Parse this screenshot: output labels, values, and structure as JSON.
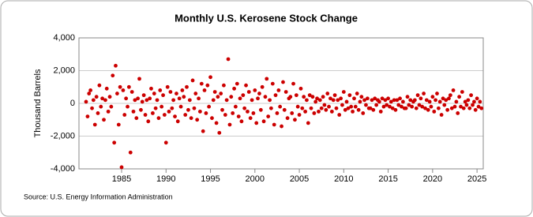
{
  "chart_data": {
    "type": "scatter",
    "title": "Monthly U.S. Kerosene Stock Change",
    "y_label": "Thousand Barrels",
    "source": "Source: U.S. Energy Information Administration",
    "color": "#cc0000",
    "grid": true,
    "xlim": [
      1980.2,
      2025.7
    ],
    "ylim": [
      -4000,
      4000
    ],
    "xticks": [
      1985,
      1990,
      1995,
      2000,
      2005,
      2010,
      2015,
      2020,
      2025
    ],
    "yticks": [
      {
        "value": -4000,
        "label": "-4,000"
      },
      {
        "value": -2000,
        "label": "-2,000"
      },
      0,
      {
        "value": 2000,
        "label": "2,000"
      },
      {
        "value": 4000,
        "label": "4,000"
      }
    ],
    "x": [
      1981,
      1981.17,
      1981.33,
      1981.5,
      1981.67,
      1981.83,
      1982,
      1982.17,
      1982.33,
      1982.5,
      1982.67,
      1982.83,
      1983,
      1983.17,
      1983.33,
      1983.5,
      1983.67,
      1983.83,
      1984,
      1984.17,
      1984.33,
      1984.5,
      1984.67,
      1984.83,
      1985,
      1985.17,
      1985.33,
      1985.5,
      1985.67,
      1985.83,
      1986,
      1986.17,
      1986.33,
      1986.5,
      1986.67,
      1986.83,
      1987,
      1987.17,
      1987.33,
      1987.5,
      1987.67,
      1987.83,
      1988,
      1988.17,
      1988.33,
      1988.5,
      1988.67,
      1988.83,
      1989,
      1989.17,
      1989.33,
      1989.5,
      1989.67,
      1989.83,
      1990,
      1990.17,
      1990.33,
      1990.5,
      1990.67,
      1990.83,
      1991,
      1991.17,
      1991.33,
      1991.5,
      1991.67,
      1991.83,
      1992,
      1992.17,
      1992.33,
      1992.5,
      1992.67,
      1992.83,
      1993,
      1993.17,
      1993.33,
      1993.5,
      1993.67,
      1993.83,
      1994,
      1994.17,
      1994.33,
      1994.5,
      1994.67,
      1994.83,
      1995,
      1995.17,
      1995.33,
      1995.5,
      1995.67,
      1995.83,
      1996,
      1996.17,
      1996.33,
      1996.5,
      1996.67,
      1996.83,
      1997,
      1997.17,
      1997.33,
      1997.5,
      1997.67,
      1997.83,
      1998,
      1998.17,
      1998.33,
      1998.5,
      1998.67,
      1998.83,
      1999,
      1999.17,
      1999.33,
      1999.5,
      1999.67,
      1999.83,
      2000,
      2000.17,
      2000.33,
      2000.5,
      2000.67,
      2000.83,
      2001,
      2001.17,
      2001.33,
      2001.5,
      2001.67,
      2001.83,
      2002,
      2002.17,
      2002.33,
      2002.5,
      2002.67,
      2002.83,
      2003,
      2003.17,
      2003.33,
      2003.5,
      2003.67,
      2003.83,
      2004,
      2004.17,
      2004.33,
      2004.5,
      2004.67,
      2004.83,
      2005,
      2005.17,
      2005.33,
      2005.5,
      2005.67,
      2005.83,
      2006,
      2006.17,
      2006.33,
      2006.5,
      2006.67,
      2006.83,
      2007,
      2007.17,
      2007.33,
      2007.5,
      2007.67,
      2007.83,
      2008,
      2008.17,
      2008.33,
      2008.5,
      2008.67,
      2008.83,
      2009,
      2009.17,
      2009.33,
      2009.5,
      2009.67,
      2009.83,
      2010,
      2010.17,
      2010.33,
      2010.5,
      2010.67,
      2010.83,
      2011,
      2011.17,
      2011.33,
      2011.5,
      2011.67,
      2011.83,
      2012,
      2012.17,
      2012.33,
      2012.5,
      2012.67,
      2012.83,
      2013,
      2013.17,
      2013.33,
      2013.5,
      2013.67,
      2013.83,
      2014,
      2014.17,
      2014.33,
      2014.5,
      2014.67,
      2014.83,
      2015,
      2015.17,
      2015.33,
      2015.5,
      2015.67,
      2015.83,
      2016,
      2016.17,
      2016.33,
      2016.5,
      2016.67,
      2016.83,
      2017,
      2017.17,
      2017.33,
      2017.5,
      2017.67,
      2017.83,
      2018,
      2018.17,
      2018.33,
      2018.5,
      2018.67,
      2018.83,
      2019,
      2019.17,
      2019.33,
      2019.5,
      2019.67,
      2019.83,
      2020,
      2020.17,
      2020.33,
      2020.5,
      2020.67,
      2020.83,
      2021,
      2021.17,
      2021.33,
      2021.5,
      2021.67,
      2021.83,
      2022,
      2022.17,
      2022.33,
      2022.5,
      2022.67,
      2022.83,
      2023,
      2023.17,
      2023.33,
      2023.5,
      2023.67,
      2023.83,
      2024,
      2024.17,
      2024.33,
      2024.5,
      2024.67,
      2024.83,
      2025,
      2025.17,
      2025.33,
      2025.5
    ],
    "values": [
      100,
      -800,
      600,
      800,
      -300,
      200,
      -1300,
      400,
      -600,
      1100,
      -200,
      300,
      -1000,
      200,
      900,
      -500,
      400,
      -200,
      1700,
      -2400,
      2300,
      600,
      -1300,
      1000,
      -3900,
      800,
      -700,
      300,
      -200,
      1000,
      -3000,
      700,
      -500,
      200,
      -900,
      300,
      1500,
      -400,
      100,
      500,
      -700,
      200,
      -1100,
      300,
      900,
      -600,
      600,
      -300,
      200,
      -900,
      800,
      -200,
      500,
      -700,
      -2400,
      1000,
      -500,
      700,
      -300,
      200,
      -800,
      600,
      -1100,
      300,
      -200,
      800,
      400,
      -700,
      1000,
      -400,
      200,
      -900,
      1400,
      -300,
      600,
      -1000,
      300,
      -500,
      1200,
      -1700,
      800,
      -600,
      1100,
      -200,
      1600,
      -900,
      200,
      700,
      -1200,
      400,
      -1800,
      600,
      -400,
      1100,
      -700,
      200,
      2700,
      -1300,
      400,
      -600,
      900,
      -200,
      1200,
      -800,
      300,
      -1100,
      500,
      -300,
      1100,
      -500,
      700,
      -900,
      200,
      -600,
      800,
      -1200,
      300,
      600,
      -400,
      1000,
      -1100,
      400,
      1500,
      -800,
      200,
      -300,
      1200,
      -1300,
      500,
      -600,
      800,
      -200,
      -1400,
      1300,
      -400,
      700,
      -900,
      300,
      400,
      -600,
      1200,
      -1000,
      500,
      -200,
      -700,
      900,
      -300,
      400,
      -500,
      200,
      -1200,
      500,
      -300,
      400,
      -600,
      100,
      300,
      -500,
      200,
      -300,
      400,
      -100,
      -400,
      600,
      -200,
      300,
      -500,
      200,
      500,
      -300,
      200,
      -700,
      300,
      -100,
      700,
      -400,
      100,
      -300,
      500,
      -200,
      -500,
      300,
      -200,
      600,
      -400,
      100,
      400,
      -600,
      200,
      -100,
      300,
      -300,
      -300,
      200,
      -400,
      300,
      -100,
      200,
      100,
      -500,
      300,
      -200,
      200,
      -100,
      300,
      -200,
      100,
      -300,
      200,
      -400,
      200,
      -100,
      300,
      -200,
      100,
      -300,
      -300,
      400,
      -100,
      200,
      -200,
      100,
      200,
      -300,
      500,
      -100,
      300,
      -200,
      600,
      -300,
      200,
      -400,
      100,
      -200,
      400,
      -500,
      200,
      600,
      -300,
      100,
      -700,
      300,
      -100,
      200,
      -400,
      300,
      500,
      -300,
      800,
      -200,
      100,
      -600,
      400,
      -200,
      700,
      -300,
      100,
      -100,
      200,
      -300,
      500,
      -100,
      100,
      -400,
      300,
      -200,
      100,
      -300
    ]
  }
}
